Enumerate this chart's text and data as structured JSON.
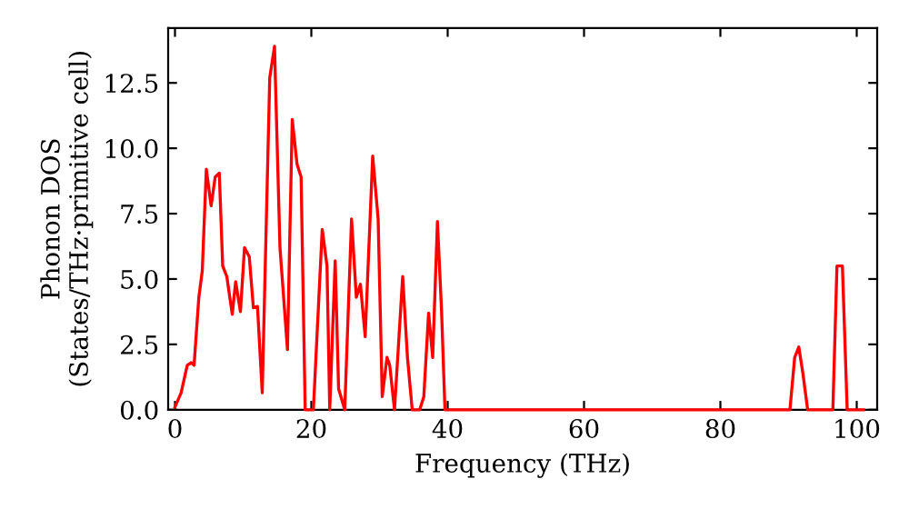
{
  "chart_data": {
    "type": "line",
    "xlabel": "Frequency (THz)",
    "ylabel": "Phonon DOS\n(States/THz·primitive cell)",
    "x": [
      0,
      0.9,
      1.8,
      2.4,
      2.8,
      3.5,
      4.0,
      4.6,
      5.3,
      5.9,
      6.5,
      7.0,
      7.6,
      8.4,
      8.9,
      9.6,
      10.2,
      10.9,
      11.5,
      12.1,
      12.8,
      13.9,
      14.6,
      15.4,
      16.5,
      17.2,
      17.9,
      18.5,
      19.1,
      20.3,
      21.6,
      22.3,
      22.7,
      23.5,
      24.0,
      24.9,
      25.9,
      26.6,
      27.2,
      27.9,
      29.0,
      29.8,
      30.4,
      31.1,
      31.5,
      32.2,
      33.4,
      34.1,
      34.8,
      35.9,
      36.5,
      37.2,
      37.8,
      38.5,
      39.1,
      39.6,
      50,
      60,
      70,
      80,
      90.2,
      90.9,
      91.5,
      92.1,
      92.8,
      96.5,
      97.1,
      97.9,
      98.6,
      101
    ],
    "series": [
      {
        "color": "#ff0000",
        "values": [
          0.1,
          0.65,
          1.7,
          1.8,
          1.7,
          4.3,
          5.3,
          9.2,
          7.8,
          8.9,
          9.05,
          5.5,
          5.1,
          3.65,
          4.9,
          3.75,
          6.2,
          5.85,
          3.9,
          3.95,
          0.65,
          12.7,
          13.9,
          6.2,
          2.3,
          11.1,
          9.4,
          8.9,
          0,
          0,
          6.9,
          5.5,
          0,
          5.7,
          0.8,
          0,
          7.3,
          4.3,
          4.8,
          2.8,
          9.7,
          7.3,
          0.5,
          2.0,
          1.7,
          0,
          5.1,
          2.0,
          0,
          0,
          0.5,
          3.7,
          2.0,
          7.2,
          3.8,
          0,
          0,
          0,
          0,
          0,
          0,
          2.0,
          2.4,
          1.4,
          0,
          0,
          5.5,
          5.5,
          0,
          0
        ]
      }
    ],
    "xlim": [
      -1,
      103
    ],
    "ylim": [
      0,
      14.6
    ],
    "xticks": [
      0,
      20,
      40,
      60,
      80,
      100
    ],
    "yticks": [
      {
        "value": 0,
        "label": "0.0"
      },
      {
        "value": 2.5,
        "label": "2.5"
      },
      {
        "value": 5,
        "label": "5.0"
      },
      {
        "value": 7.5,
        "label": "7.5"
      },
      {
        "value": 10,
        "label": "10.0"
      },
      {
        "value": 12.5,
        "label": "12.5"
      }
    ],
    "grid": false,
    "marker": "none",
    "line_style": "solid"
  }
}
